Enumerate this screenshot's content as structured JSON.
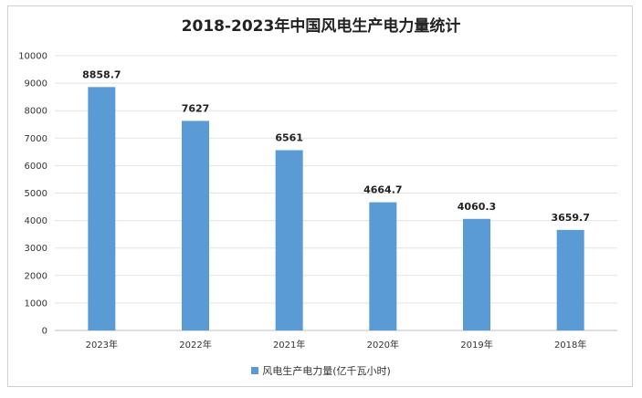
{
  "chart_data": {
    "type": "bar",
    "title": "2018-2023年中国风电生产电力量统计",
    "categories": [
      "2023年",
      "2022年",
      "2021年",
      "2020年",
      "2019年",
      "2018年"
    ],
    "series": [
      {
        "name": "风电生产电力量(亿千瓦小时)",
        "values": [
          8858.7,
          7627,
          6561,
          4664.7,
          4060.3,
          3659.7
        ],
        "labels": [
          "8858.7",
          "7627",
          "6561",
          "4664.7",
          "4060.3",
          "3659.7"
        ],
        "color": "#5b9bd5"
      }
    ],
    "ylim": [
      0,
      10000
    ],
    "yticks": [
      0,
      1000,
      2000,
      3000,
      4000,
      5000,
      6000,
      7000,
      8000,
      9000,
      10000
    ],
    "grid": true,
    "legend": "bottom"
  }
}
